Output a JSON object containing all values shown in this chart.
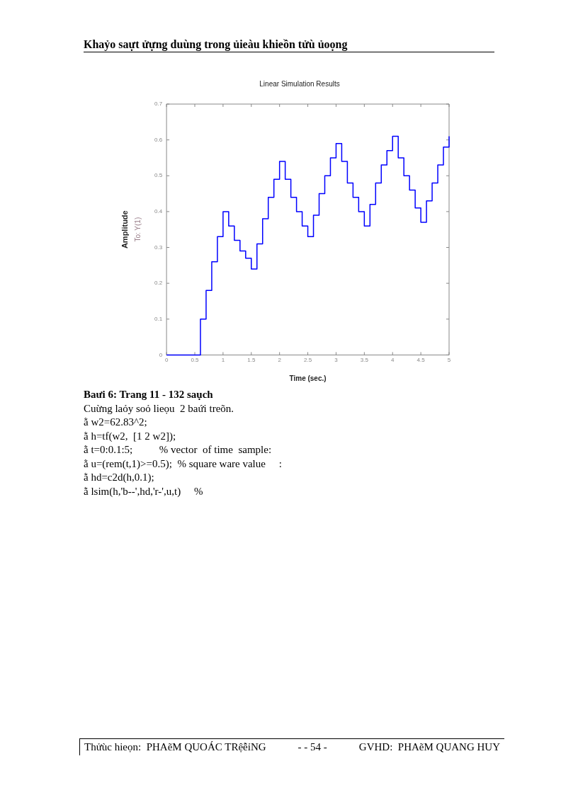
{
  "chart_data": {
    "type": "step",
    "title": "Linear Simulation Results",
    "xlabel": "Time (sec.)",
    "ylabel": "Amplitude",
    "annotations": [
      "To: Y(1)",
      "Khaỷo saựt ửựng duùng trong ủieàu khieồn tửù ủoọng",
      "Baưi 6: Trang 11 - 132 saụch",
      "Cuừng laỏy soỏ lieọu  2 baứi treõn.",
      "ằ w2=62.83^2;",
      "ằ h=tf(w2,  [1 2 w2]);",
      "ằ t=0:0.1:5;          % vector  of time  sample:",
      "ằ u=(rem(t,1)>=0.5);  % square ware value     :",
      "ằ hd=c2d(h,0.1);",
      "ằ lsim(h,'b--',hd,'r-',u,t)     %",
      "Thửùc hieọn:  PHAẽM QUOÁC TRệễỉNG",
      "- - 54 -",
      "GVHD:  PHAẽM QUANG HUY"
    ],
    "x": [
      0,
      0.1,
      0.2,
      0.3,
      0.4,
      0.5,
      0.6,
      0.7,
      0.8,
      0.9,
      1,
      1.1,
      1.2,
      1.3,
      1.4,
      1.5,
      1.6,
      1.7,
      1.8,
      1.9,
      2,
      2.1,
      2.2,
      2.3,
      2.4,
      2.5,
      2.6,
      2.7,
      2.8,
      2.9,
      3,
      3.1,
      3.2,
      3.3,
      3.4,
      3.5,
      3.6,
      3.7,
      3.8,
      3.9,
      4,
      4.1,
      4.2,
      4.3,
      4.4,
      4.5,
      4.6,
      4.7,
      4.8,
      4.9,
      5
    ],
    "series": [
      {
        "color": "#0000ff",
        "values": [
          0,
          0,
          0,
          0,
          0,
          0,
          0.1,
          0.18,
          0.26,
          0.33,
          0.4,
          0.36,
          0.32,
          0.29,
          0.27,
          0.24,
          0.31,
          0.38,
          0.44,
          0.49,
          0.54,
          0.49,
          0.44,
          0.4,
          0.36,
          0.33,
          0.39,
          0.45,
          0.5,
          0.55,
          0.59,
          0.54,
          0.48,
          0.44,
          0.4,
          0.36,
          0.42,
          0.48,
          0.53,
          0.57,
          0.61,
          0.55,
          0.5,
          0.46,
          0.41,
          0.37,
          0.43,
          0.48,
          0.53,
          0.58,
          0.61
        ]
      }
    ],
    "xlim": [
      0,
      5
    ],
    "xticks": [
      0,
      0.5,
      1,
      1.5,
      2,
      2.5,
      3,
      3.5,
      4,
      4.5,
      5
    ],
    "ylim": [
      0,
      0.7
    ],
    "yticks": [
      0,
      0.1,
      0.2,
      0.3,
      0.4,
      0.5,
      0.6,
      0.7
    ],
    "grid": false,
    "legend": false,
    "marker": "none",
    "line_style": "solid"
  }
}
